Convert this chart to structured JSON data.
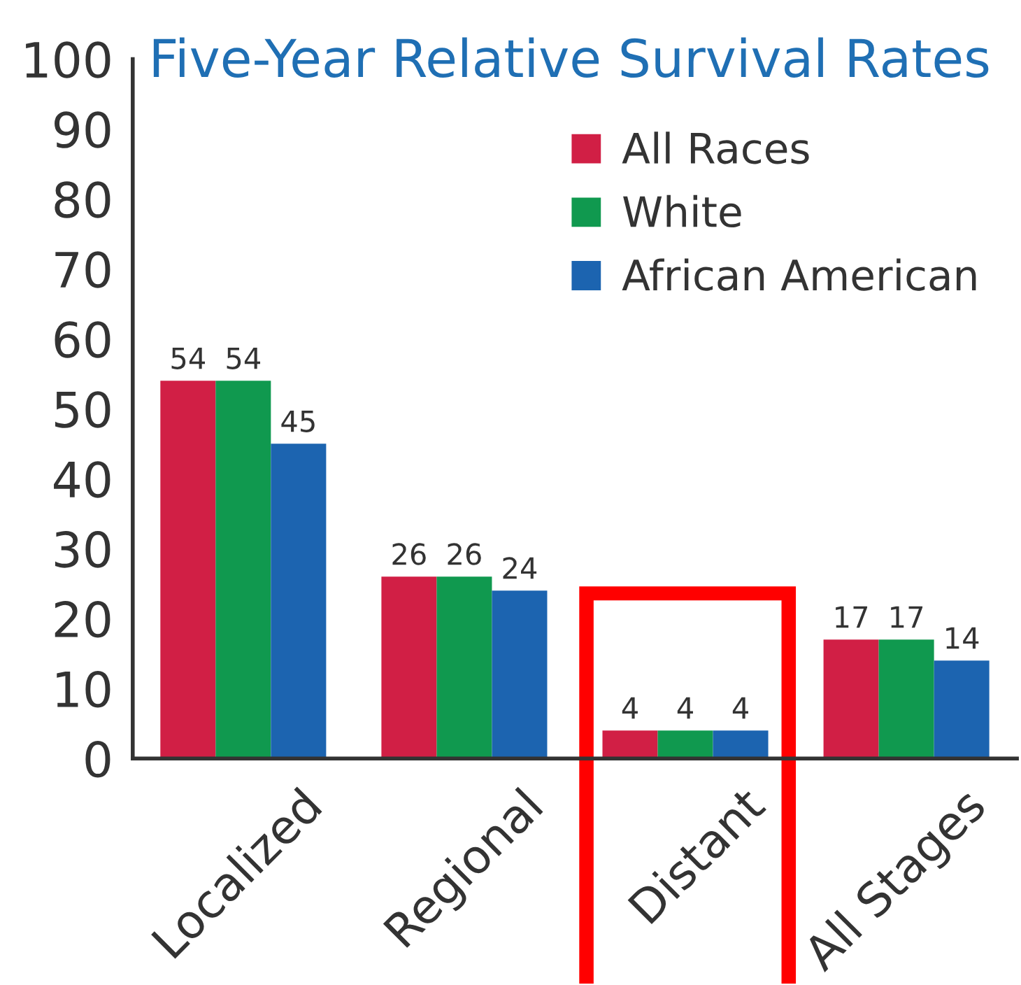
{
  "chart_data": {
    "type": "bar",
    "title": "Five-Year Relative Survival Rates",
    "categories": [
      "Localized",
      "Regional",
      "Distant",
      "All Stages"
    ],
    "series": [
      {
        "name": "All Races",
        "color": "#d11f45",
        "values": [
          54,
          26,
          4,
          17
        ]
      },
      {
        "name": "White",
        "color": "#10994f",
        "values": [
          54,
          26,
          4,
          17
        ]
      },
      {
        "name": "African American",
        "color": "#1c64b0",
        "values": [
          45,
          24,
          4,
          14
        ]
      }
    ],
    "ylim": [
      0,
      100
    ],
    "yticks": [
      0,
      10,
      20,
      30,
      40,
      50,
      60,
      70,
      80,
      90,
      100
    ],
    "grid": false,
    "legend": "top right",
    "data_labels": true
  }
}
